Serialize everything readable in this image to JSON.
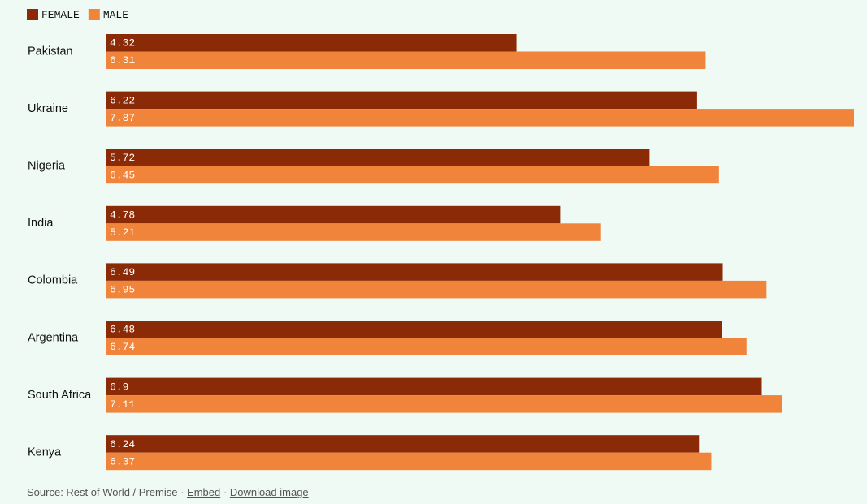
{
  "chart_data": {
    "type": "bar",
    "orientation": "horizontal",
    "categories": [
      "Pakistan",
      "Ukraine",
      "Nigeria",
      "India",
      "Colombia",
      "Argentina",
      "South Africa",
      "Kenya"
    ],
    "series": [
      {
        "name": "FEMALE",
        "color": "#8a2a06",
        "values": [
          4.32,
          6.22,
          5.72,
          4.78,
          6.49,
          6.48,
          6.9,
          6.24
        ]
      },
      {
        "name": "MALE",
        "color": "#f0843a",
        "values": [
          6.31,
          7.87,
          6.45,
          5.21,
          6.95,
          6.74,
          7.11,
          6.37
        ]
      }
    ],
    "legend": "top-left"
  },
  "footer": {
    "source": "Source: Rest of World / Premise",
    "separator": "·",
    "links": [
      "Embed",
      "Download image"
    ]
  }
}
